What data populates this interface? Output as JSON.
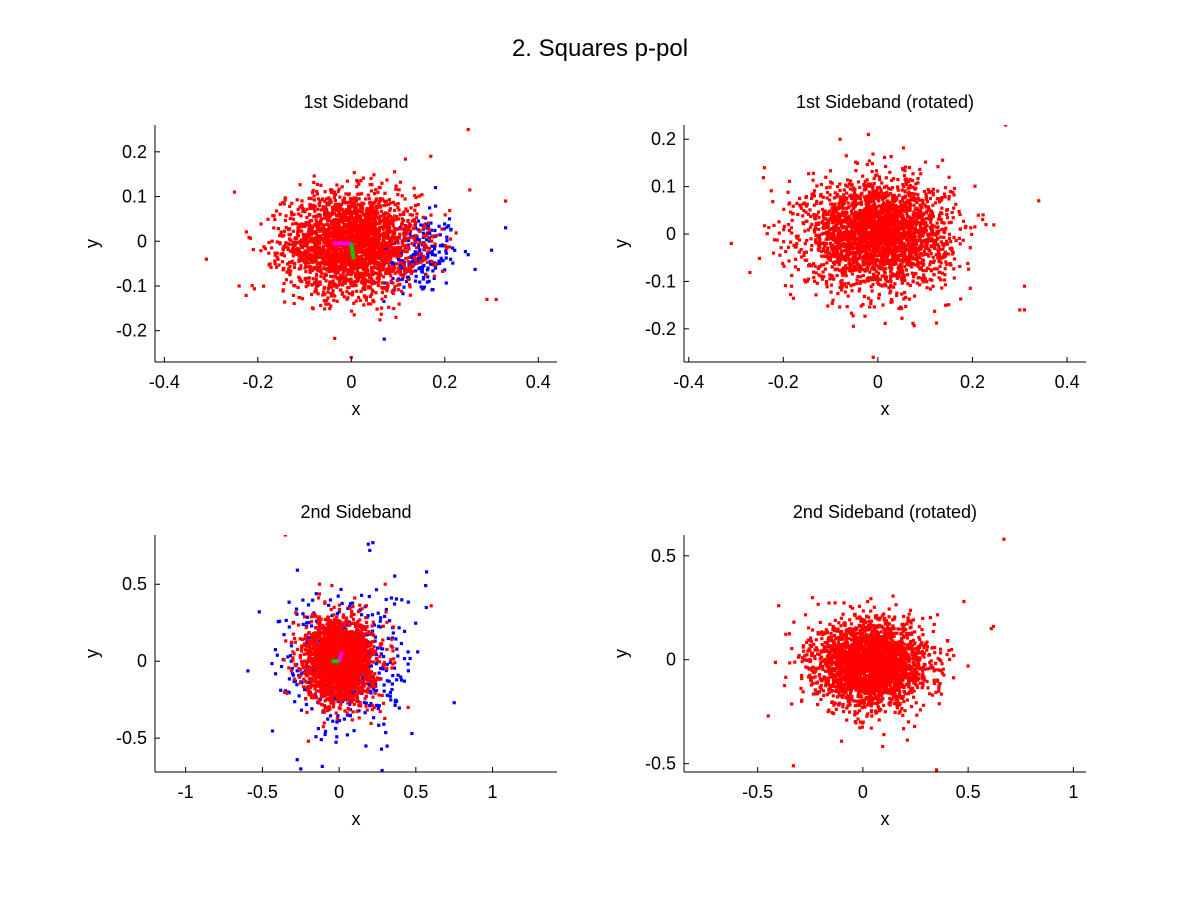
{
  "figure": {
    "title": "2. Squares p-pol",
    "background": "#ffffff"
  },
  "colors": {
    "red": "#ff0000",
    "blue": "#0000ff",
    "magenta": "#ff00ff",
    "green": "#00cc00"
  },
  "chart_data": [
    {
      "type": "scatter",
      "title": "1st Sideband",
      "xlabel": "x",
      "ylabel": "y",
      "xlim": [
        -0.42,
        0.44
      ],
      "ylim": [
        -0.27,
        0.26
      ],
      "xticks": [
        -0.4,
        -0.2,
        0,
        0.2,
        0.4
      ],
      "xtick_labels": [
        "-0.4",
        "-0.2",
        "0",
        "0.2",
        "0.4"
      ],
      "yticks": [
        -0.2,
        -0.1,
        0,
        0.1,
        0.2
      ],
      "ytick_labels": [
        "-0.2",
        "-0.1",
        "0",
        "0.1",
        "0.2"
      ],
      "grid": false,
      "series": [
        {
          "color": "#0000ff",
          "marker": "dot",
          "cloud": {
            "center": [
              0.14,
              -0.03
            ],
            "sigma": [
              0.045,
              0.045
            ],
            "count": 240
          },
          "points": [
            [
              0.2,
              -0.01
            ],
            [
              0.25,
              -0.03
            ],
            [
              0.3,
              -0.02
            ],
            [
              0.33,
              0.03
            ],
            [
              0.21,
              0.05
            ],
            [
              0.18,
              0.12
            ]
          ]
        },
        {
          "color": "#ff0000",
          "marker": "dot",
          "cloud": {
            "center": [
              0.0,
              -0.005
            ],
            "sigma": [
              0.07,
              0.055
            ],
            "count": 2600
          },
          "points": [
            [
              0.25,
              0.25
            ],
            [
              0.33,
              0.09
            ],
            [
              -0.31,
              -0.04
            ],
            [
              -0.25,
              0.11
            ],
            [
              0.29,
              -0.13
            ],
            [
              0.31,
              -0.13
            ],
            [
              0.0,
              -0.26
            ],
            [
              -0.24,
              -0.1
            ],
            [
              0.17,
              0.19
            ]
          ]
        },
        {
          "color": "#ff00ff",
          "marker": "line",
          "lines": [
            [
              [
                -0.04,
                -0.005
              ],
              [
                0.0,
                -0.005
              ]
            ]
          ]
        },
        {
          "color": "#00cc00",
          "marker": "line",
          "lines": [
            [
              [
                0.0,
                -0.005
              ],
              [
                0.005,
                -0.04
              ]
            ]
          ]
        }
      ]
    },
    {
      "type": "scatter",
      "title": "1st Sideband (rotated)",
      "xlabel": "x",
      "ylabel": "y",
      "xlim": [
        -0.41,
        0.44
      ],
      "ylim": [
        -0.27,
        0.23
      ],
      "xticks": [
        -0.4,
        -0.2,
        0,
        0.2,
        0.4
      ],
      "xtick_labels": [
        "-0.4",
        "-0.2",
        "0",
        "0.2",
        "0.4"
      ],
      "yticks": [
        -0.2,
        -0.1,
        0,
        0.1,
        0.2
      ],
      "ytick_labels": [
        "-0.2",
        "-0.1",
        "0",
        "0.1",
        "0.2"
      ],
      "grid": false,
      "series": [
        {
          "color": "#ff0000",
          "marker": "dot",
          "cloud": {
            "center": [
              0.0,
              0.0
            ],
            "sigma": [
              0.075,
              0.055
            ],
            "count": 2800
          },
          "points": [
            [
              0.27,
              0.23
            ],
            [
              0.34,
              0.07
            ],
            [
              -0.31,
              -0.02
            ],
            [
              -0.24,
              0.14
            ],
            [
              0.31,
              -0.11
            ],
            [
              0.3,
              -0.16
            ],
            [
              0.31,
              -0.16
            ],
            [
              -0.02,
              0.21
            ],
            [
              -0.01,
              -0.26
            ],
            [
              -0.08,
              0.2
            ]
          ]
        }
      ]
    },
    {
      "type": "scatter",
      "title": "2nd Sideband",
      "xlabel": "x",
      "ylabel": "y",
      "xlim": [
        -1.2,
        1.42
      ],
      "ylim": [
        -0.72,
        0.82
      ],
      "xticks": [
        -1,
        -0.5,
        0,
        0.5,
        1
      ],
      "xtick_labels": [
        "-1",
        "-0.5",
        "0",
        "0.5",
        "1"
      ],
      "yticks": [
        -0.5,
        0,
        0.5
      ],
      "ytick_labels": [
        "-0.5",
        "0",
        "0.5"
      ],
      "grid": false,
      "series": [
        {
          "color": "#0000ff",
          "marker": "dot",
          "cloud": {
            "center": [
              0.05,
              -0.02
            ],
            "sigma": [
              0.22,
              0.24
            ],
            "count": 420
          },
          "points": [
            [
              0.19,
              0.76
            ],
            [
              0.22,
              0.77
            ],
            [
              0.2,
              0.72
            ],
            [
              -0.52,
              0.32
            ],
            [
              0.75,
              -0.27
            ],
            [
              0.57,
              0.58
            ],
            [
              -0.25,
              -0.7
            ],
            [
              0.28,
              -0.71
            ]
          ]
        },
        {
          "color": "#ff0000",
          "marker": "dot",
          "cloud": {
            "center": [
              0.0,
              0.0
            ],
            "sigma": [
              0.11,
              0.13
            ],
            "count": 2300
          },
          "points": [
            [
              -0.35,
              0.82
            ],
            [
              0.6,
              0.36
            ],
            [
              -0.2,
              -0.52
            ],
            [
              0.45,
              -0.3
            ],
            [
              0.3,
              0.5
            ]
          ]
        },
        {
          "color": "#ff00ff",
          "marker": "line",
          "lines": [
            [
              [
                0.0,
                0.0
              ],
              [
                0.02,
                0.06
              ]
            ]
          ]
        },
        {
          "color": "#00cc00",
          "marker": "line",
          "lines": [
            [
              [
                -0.05,
                0.0
              ],
              [
                0.0,
                0.0
              ]
            ]
          ]
        }
      ]
    },
    {
      "type": "scatter",
      "title": "2nd Sideband (rotated)",
      "xlabel": "x",
      "ylabel": "y",
      "xlim": [
        -0.85,
        1.06
      ],
      "ylim": [
        -0.54,
        0.6
      ],
      "xticks": [
        -0.5,
        0,
        0.5,
        1
      ],
      "xtick_labels": [
        "-0.5",
        "0",
        "0.5",
        "1"
      ],
      "yticks": [
        -0.5,
        0,
        0.5
      ],
      "ytick_labels": [
        "-0.5",
        "0",
        "0.5"
      ],
      "grid": false,
      "series": [
        {
          "color": "#ff0000",
          "marker": "dot",
          "cloud": {
            "center": [
              0.04,
              -0.02
            ],
            "sigma": [
              0.13,
              0.1
            ],
            "count": 2700
          },
          "points": [
            [
              0.67,
              0.58
            ],
            [
              0.62,
              0.16
            ],
            [
              0.61,
              0.15
            ],
            [
              -0.45,
              -0.27
            ],
            [
              -0.33,
              -0.51
            ],
            [
              0.35,
              -0.53
            ],
            [
              -0.4,
              0.26
            ],
            [
              0.48,
              0.28
            ],
            [
              0.5,
              -0.03
            ]
          ]
        }
      ]
    }
  ]
}
